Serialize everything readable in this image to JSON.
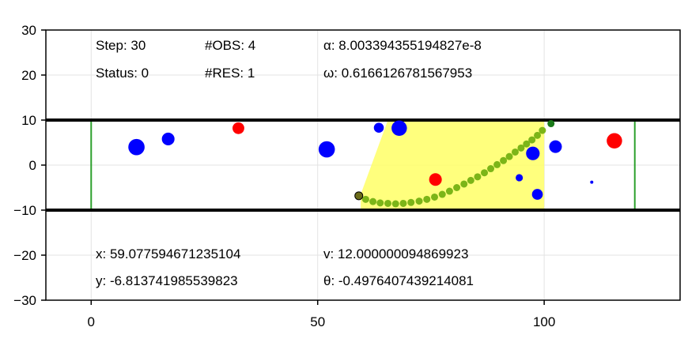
{
  "chart_data": {
    "type": "scatter",
    "title": "",
    "xlabel": "",
    "ylabel": "",
    "xlim": [
      -10,
      130
    ],
    "ylim": [
      -30,
      30
    ],
    "grid": true,
    "x_ticks": [
      0,
      50,
      100
    ],
    "y_ticks": [
      30,
      20,
      10,
      0,
      -10,
      -20,
      -30
    ],
    "tick_labels": {
      "x": [
        "0",
        "50",
        "100"
      ],
      "y": [
        "30",
        "20",
        "10",
        "0",
        "−10",
        "−20",
        "−30"
      ]
    },
    "road": {
      "y_top": 10,
      "y_bottom": -10,
      "color": "#000000"
    },
    "bounds": {
      "x_start": 0,
      "x_end": 120,
      "y_top": 10,
      "y_bottom": -10,
      "color": "#2ca02c"
    },
    "sensor_region": {
      "color": "#ffff66",
      "polygon": [
        [
          59.5,
          -10
        ],
        [
          59.5,
          -6.5
        ],
        [
          65.5,
          10
        ],
        [
          100,
          10
        ],
        [
          100,
          -10
        ]
      ]
    },
    "obstacles_blue": [
      {
        "x": 10,
        "y": 4,
        "r": 1.8
      },
      {
        "x": 17,
        "y": 5.8,
        "r": 1.4
      },
      {
        "x": 52,
        "y": 3.5,
        "r": 1.8
      },
      {
        "x": 63.5,
        "y": 8.3,
        "r": 1.1
      },
      {
        "x": 68,
        "y": 8.2,
        "r": 1.7
      },
      {
        "x": 94.5,
        "y": -2.8,
        "r": 0.8
      },
      {
        "x": 97.5,
        "y": 2.6,
        "r": 1.5
      },
      {
        "x": 98.5,
        "y": -6.5,
        "r": 1.2
      },
      {
        "x": 102.5,
        "y": 4.1,
        "r": 1.4
      },
      {
        "x": 110.5,
        "y": -3.8,
        "r": 0.3
      }
    ],
    "obstacles_red": [
      {
        "x": 32.5,
        "y": 8.2,
        "r": 1.3
      },
      {
        "x": 76,
        "y": -3.2,
        "r": 1.4
      },
      {
        "x": 115.5,
        "y": 5.4,
        "r": 1.7
      }
    ],
    "trajectory": {
      "color": "#7cb518",
      "x": [
        59.08,
        60.6,
        62.2,
        63.8,
        65.5,
        67.2,
        68.9,
        70.6,
        72.4,
        74.1,
        75.8,
        77.5,
        79.1,
        80.7,
        82.3,
        83.8,
        85.3,
        86.8,
        88.2,
        89.6,
        91.0,
        92.3,
        93.6,
        94.9,
        96.1,
        97.3,
        98.5,
        99.6
      ],
      "y": [
        -6.81,
        -7.6,
        -8.1,
        -8.4,
        -8.5,
        -8.6,
        -8.5,
        -8.3,
        -8.0,
        -7.6,
        -7.1,
        -6.5,
        -5.8,
        -5.0,
        -4.2,
        -3.4,
        -2.6,
        -1.7,
        -0.8,
        0.1,
        1.0,
        1.9,
        2.9,
        3.8,
        4.7,
        5.6,
        6.6,
        7.7
      ]
    },
    "ego": {
      "x": 59.08,
      "y": -6.81,
      "color": "#6b6b1a"
    },
    "goal": {
      "x": 101.5,
      "y": 9.2,
      "color": "#1a7a1a"
    }
  },
  "info": {
    "step": "Step: 30",
    "status": "Status: 0",
    "obs": "#OBS: 4",
    "res": "#RES: 1",
    "alpha": "α: 8.003394355194827e-8",
    "omega": "ω: 0.6166126781567953",
    "x": "x: 59.077594671235104",
    "y": "y: -6.813741985539823",
    "v": "v: 12.000000094869923",
    "theta": "θ: -0.4976407439214081"
  }
}
